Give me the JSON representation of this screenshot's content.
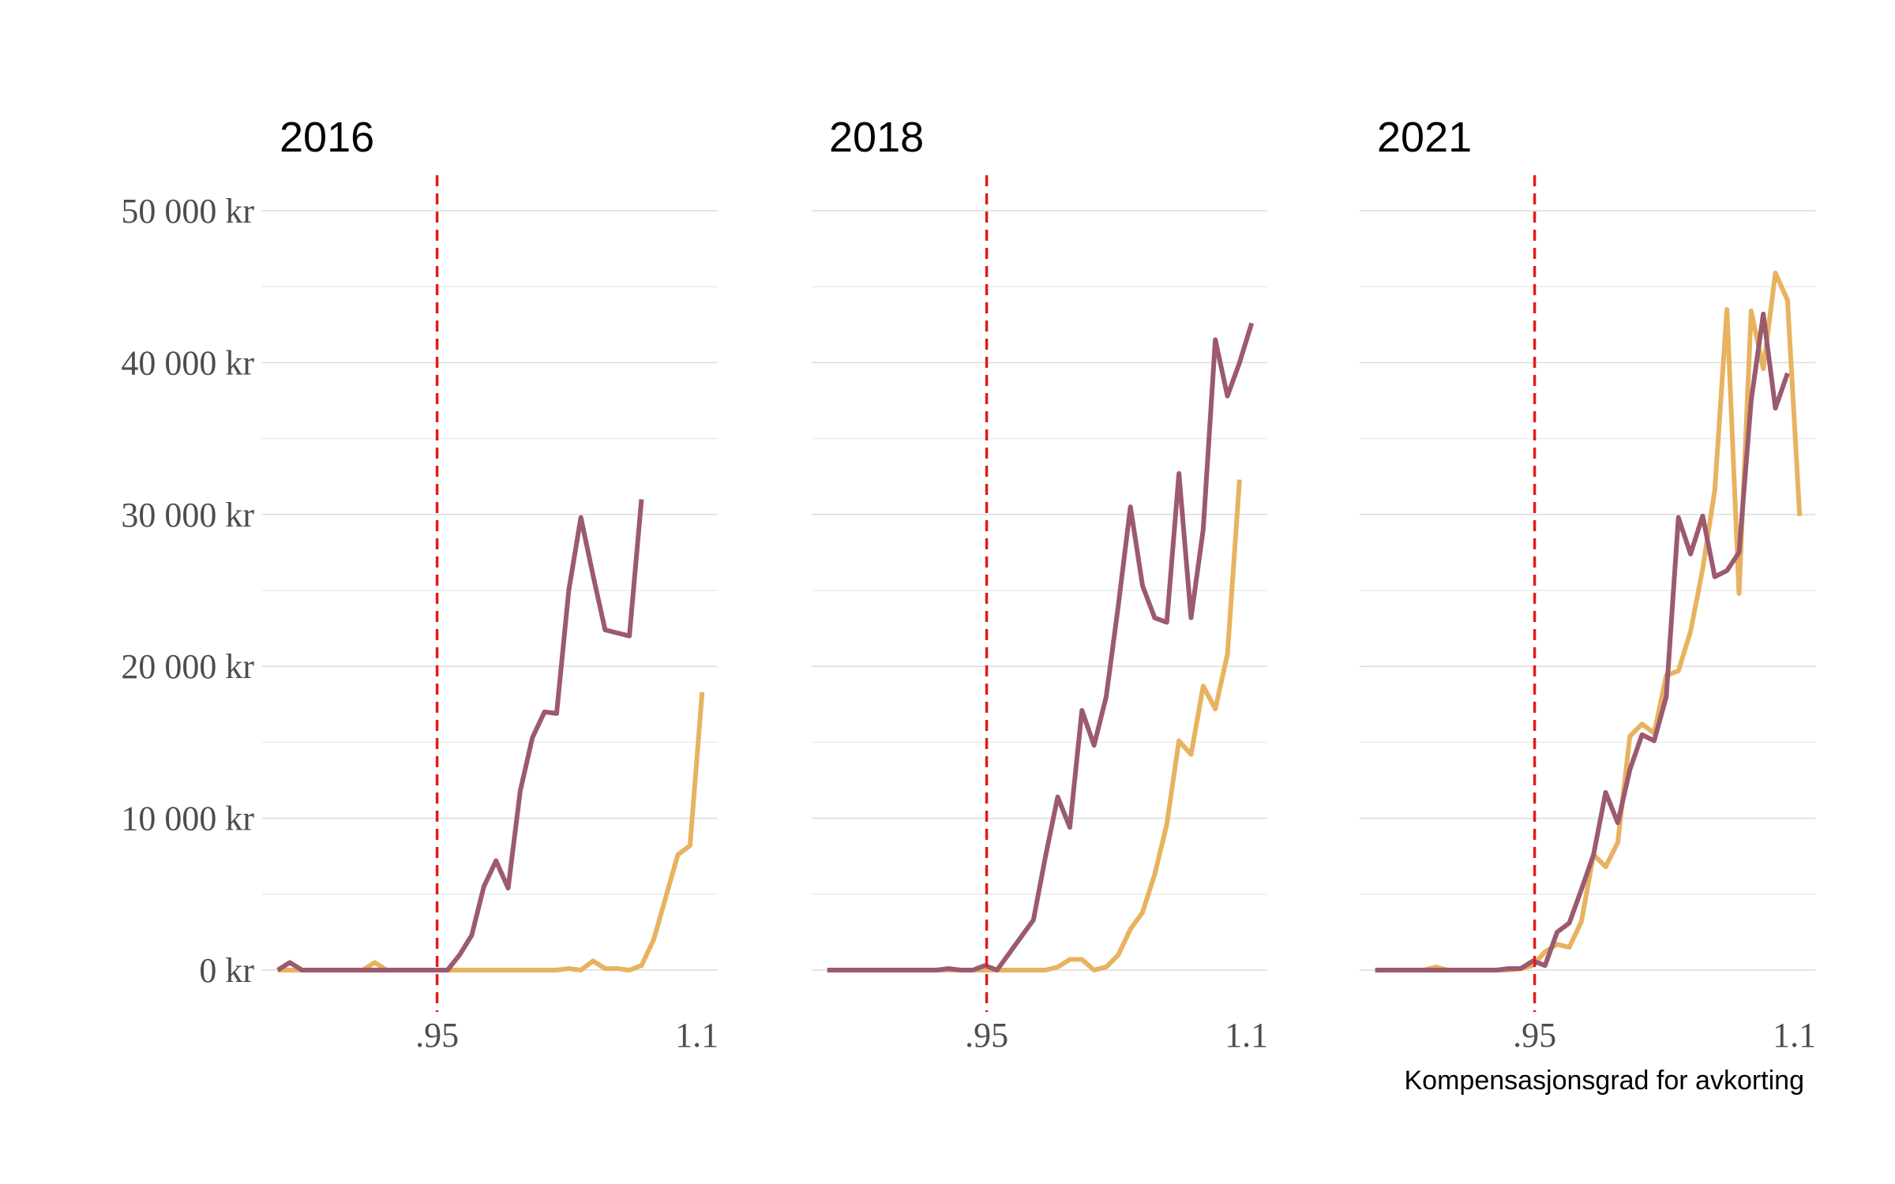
{
  "chart_data": [
    {
      "type": "line",
      "title": "2016",
      "x": [
        0.858,
        0.865,
        0.872,
        0.879,
        0.886,
        0.893,
        0.9,
        0.907,
        0.914,
        0.921,
        0.928,
        0.935,
        0.942,
        0.949,
        0.956,
        0.963,
        0.97,
        0.977,
        0.984,
        0.991,
        0.998,
        1.005,
        1.012,
        1.019,
        1.026,
        1.033,
        1.04,
        1.047,
        1.054,
        1.061,
        1.068,
        1.075,
        1.082,
        1.089,
        1.096,
        1.103
      ],
      "series": [
        {
          "color": "#e8b25f",
          "values": [
            0,
            0,
            0,
            0,
            0,
            0,
            0,
            0,
            500,
            0,
            0,
            0,
            0,
            0,
            0,
            0,
            0,
            0,
            0,
            0,
            0,
            0,
            0,
            0,
            100,
            0,
            600,
            100,
            100,
            0,
            300,
            2000,
            4800,
            7600,
            8200,
            18300
          ]
        },
        {
          "color": "#9b5a6e",
          "values": [
            0,
            500,
            0,
            0,
            0,
            0,
            0,
            0,
            0,
            0,
            0,
            0,
            0,
            0,
            0,
            1000,
            2300,
            5500,
            7200,
            5400,
            11800,
            15300,
            17000,
            16900,
            25000,
            29800,
            26000,
            22400,
            22200,
            22000,
            31000,
            null,
            null,
            null,
            null,
            null
          ]
        }
      ],
      "xlim": [
        0.849,
        1.112
      ],
      "xticks": [
        {
          "value": 0.95,
          "label": ".95"
        },
        1.1
      ],
      "ylim": [
        0,
        50000
      ],
      "yticks": [
        {
          "value": 0,
          "label": "0  kr"
        },
        {
          "value": 10000,
          "label": "10 000  kr"
        },
        {
          "value": 20000,
          "label": "20 000  kr"
        },
        {
          "value": 30000,
          "label": "30 000  kr"
        },
        {
          "value": 40000,
          "label": "40 000  kr"
        },
        {
          "value": 50000,
          "label": "50 000  kr"
        }
      ],
      "minor_yticks": [
        5000,
        15000,
        25000,
        35000,
        45000
      ],
      "reference_line": 0.95,
      "reference_color": "#e41a1c",
      "grid": true
    },
    {
      "type": "line",
      "title": "2018",
      "x": [
        0.858,
        0.865,
        0.872,
        0.879,
        0.886,
        0.893,
        0.9,
        0.907,
        0.914,
        0.921,
        0.928,
        0.935,
        0.942,
        0.949,
        0.956,
        0.963,
        0.97,
        0.977,
        0.984,
        0.991,
        0.998,
        1.005,
        1.012,
        1.019,
        1.026,
        1.033,
        1.04,
        1.047,
        1.054,
        1.061,
        1.068,
        1.075,
        1.082,
        1.089,
        1.096,
        1.103
      ],
      "series": [
        {
          "color": "#e8b25f",
          "values": [
            0,
            0,
            0,
            0,
            0,
            0,
            0,
            0,
            0,
            0,
            0,
            0,
            0,
            0,
            0,
            0,
            0,
            0,
            0,
            200,
            700,
            700,
            0,
            200,
            1000,
            2700,
            3800,
            6300,
            9600,
            15100,
            14200,
            18700,
            17200,
            20800,
            32300,
            null
          ]
        },
        {
          "color": "#9b5a6e",
          "values": [
            0,
            0,
            0,
            0,
            0,
            0,
            0,
            0,
            0,
            0,
            100,
            0,
            0,
            300,
            0,
            1100,
            2200,
            3300,
            7500,
            11400,
            9400,
            17100,
            14800,
            18000,
            24000,
            30500,
            25300,
            23200,
            22900,
            32700,
            23200,
            29000,
            41500,
            37800,
            40000,
            42600
          ]
        }
      ],
      "xlim": [
        0.849,
        1.112
      ],
      "xticks": [
        {
          "value": 0.95,
          "label": ".95"
        },
        1.1
      ],
      "ylim": [
        0,
        50000
      ],
      "yticks": [
        0,
        10000,
        20000,
        30000,
        40000,
        50000
      ],
      "ytick_labels": false,
      "minor_yticks": [
        5000,
        15000,
        25000,
        35000,
        45000
      ],
      "reference_line": 0.95,
      "reference_color": "#e41a1c",
      "grid": true
    },
    {
      "type": "line",
      "title": "2021",
      "xlabel": "Kompensasjonsgrad for avkorting",
      "x": [
        0.858,
        0.865,
        0.872,
        0.879,
        0.886,
        0.893,
        0.9,
        0.907,
        0.914,
        0.921,
        0.928,
        0.935,
        0.942,
        0.949,
        0.956,
        0.963,
        0.97,
        0.977,
        0.984,
        0.991,
        0.998,
        1.005,
        1.012,
        1.019,
        1.026,
        1.033,
        1.04,
        1.047,
        1.054,
        1.061,
        1.068,
        1.075,
        1.082,
        1.089,
        1.096,
        1.103
      ],
      "series": [
        {
          "color": "#e8b25f",
          "values": [
            0,
            0,
            0,
            0,
            0,
            200,
            0,
            0,
            0,
            0,
            0,
            0,
            100,
            300,
            1200,
            1700,
            1500,
            3200,
            7600,
            6800,
            8400,
            15400,
            16200,
            15600,
            19400,
            19700,
            22300,
            26400,
            31600,
            43500,
            24800,
            43400,
            39600,
            45900,
            44100,
            29900
          ]
        },
        {
          "color": "#9b5a6e",
          "values": [
            0,
            0,
            0,
            0,
            0,
            0,
            0,
            0,
            0,
            0,
            0,
            100,
            100,
            600,
            300,
            2500,
            3100,
            5300,
            7600,
            11700,
            9700,
            13200,
            15500,
            15100,
            18000,
            29800,
            27400,
            29900,
            25900,
            26300,
            27500,
            37500,
            43200,
            37000,
            39300,
            null
          ]
        }
      ],
      "xlim": [
        0.849,
        1.112
      ],
      "xticks": [
        {
          "value": 0.95,
          "label": ".95"
        },
        1.1
      ],
      "ylim": [
        0,
        50000
      ],
      "yticks": [
        0,
        10000,
        20000,
        30000,
        40000,
        50000
      ],
      "ytick_labels": false,
      "minor_yticks": [
        5000,
        15000,
        25000,
        35000,
        45000
      ],
      "reference_line": 0.95,
      "reference_color": "#e41a1c",
      "grid": true
    }
  ]
}
